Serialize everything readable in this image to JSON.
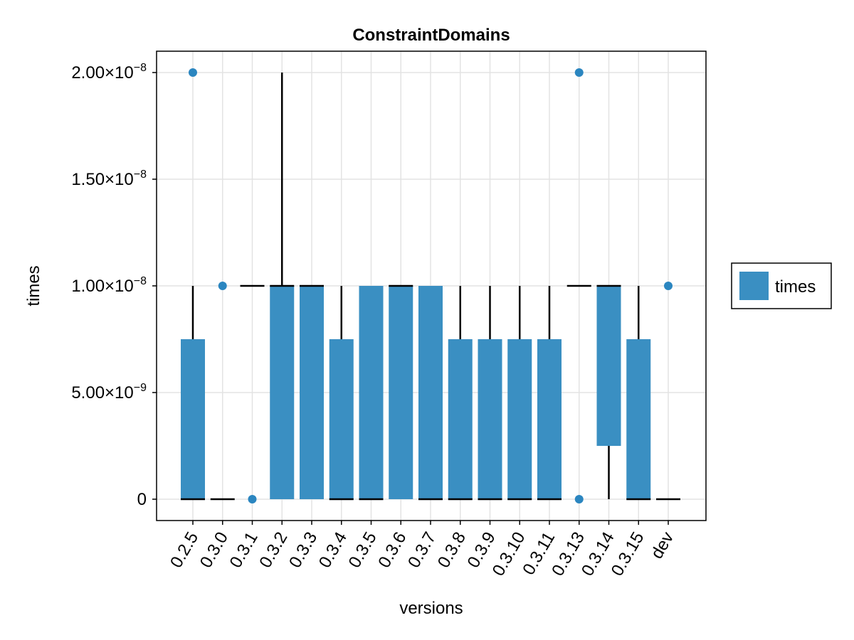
{
  "chart_data": {
    "type": "boxplot",
    "title": "ConstraintDomains",
    "xlabel": "versions",
    "ylabel": "times",
    "ylim": [
      -1e-09,
      2.1e-08
    ],
    "yticks": [
      {
        "value": 0,
        "base": "0",
        "exp": ""
      },
      {
        "value": 5e-09,
        "base": "5.00×10",
        "exp": "−9"
      },
      {
        "value": 1e-08,
        "base": "1.00×10",
        "exp": "−8"
      },
      {
        "value": 1.5e-08,
        "base": "1.50×10",
        "exp": "−8"
      },
      {
        "value": 2e-08,
        "base": "2.00×10",
        "exp": "−8"
      }
    ],
    "grid": true,
    "legend": {
      "position": "right",
      "entries": [
        "times"
      ]
    },
    "series_color": "#3a8fc2",
    "outlier_color": "#2b86c0",
    "categories": [
      "0.2.5",
      "0.3.0",
      "0.3.1",
      "0.3.2",
      "0.3.3",
      "0.3.4",
      "0.3.5",
      "0.3.6",
      "0.3.7",
      "0.3.8",
      "0.3.9",
      "0.3.10",
      "0.3.11",
      "0.3.13",
      "0.3.14",
      "0.3.15",
      "dev"
    ],
    "boxes": [
      {
        "version": "0.2.5",
        "whisker_low": 0,
        "q1": 0,
        "median": 0,
        "q3": 7.5e-09,
        "whisker_high": 1e-08,
        "outliers": [
          2e-08
        ]
      },
      {
        "version": "0.3.0",
        "whisker_low": 0,
        "q1": 0,
        "median": 0,
        "q3": 0,
        "whisker_high": 0,
        "outliers": [
          1e-08
        ]
      },
      {
        "version": "0.3.1",
        "whisker_low": 1e-08,
        "q1": 1e-08,
        "median": 1e-08,
        "q3": 1e-08,
        "whisker_high": 1e-08,
        "outliers": [
          0
        ]
      },
      {
        "version": "0.3.2",
        "whisker_low": 0,
        "q1": 0,
        "median": 1e-08,
        "q3": 1e-08,
        "whisker_high": 2e-08,
        "outliers": []
      },
      {
        "version": "0.3.3",
        "whisker_low": 0,
        "q1": 0,
        "median": 1e-08,
        "q3": 1e-08,
        "whisker_high": 1e-08,
        "outliers": []
      },
      {
        "version": "0.3.4",
        "whisker_low": 0,
        "q1": 0,
        "median": 0,
        "q3": 7.5e-09,
        "whisker_high": 1e-08,
        "outliers": []
      },
      {
        "version": "0.3.5",
        "whisker_low": 0,
        "q1": 0,
        "median": 0,
        "q3": 1e-08,
        "whisker_high": 1e-08,
        "outliers": []
      },
      {
        "version": "0.3.6",
        "whisker_low": 0,
        "q1": 0,
        "median": 1e-08,
        "q3": 1e-08,
        "whisker_high": 1e-08,
        "outliers": []
      },
      {
        "version": "0.3.7",
        "whisker_low": 0,
        "q1": 0,
        "median": 0,
        "q3": 1e-08,
        "whisker_high": 1e-08,
        "outliers": []
      },
      {
        "version": "0.3.8",
        "whisker_low": 0,
        "q1": 0,
        "median": 0,
        "q3": 7.5e-09,
        "whisker_high": 1e-08,
        "outliers": []
      },
      {
        "version": "0.3.9",
        "whisker_low": 0,
        "q1": 0,
        "median": 0,
        "q3": 7.5e-09,
        "whisker_high": 1e-08,
        "outliers": []
      },
      {
        "version": "0.3.10",
        "whisker_low": 0,
        "q1": 0,
        "median": 0,
        "q3": 7.5e-09,
        "whisker_high": 1e-08,
        "outliers": []
      },
      {
        "version": "0.3.11",
        "whisker_low": 0,
        "q1": 0,
        "median": 0,
        "q3": 7.5e-09,
        "whisker_high": 1e-08,
        "outliers": []
      },
      {
        "version": "0.3.13",
        "whisker_low": 1e-08,
        "q1": 1e-08,
        "median": 1e-08,
        "q3": 1e-08,
        "whisker_high": 1e-08,
        "outliers": [
          2e-08,
          0
        ]
      },
      {
        "version": "0.3.14",
        "whisker_low": 0,
        "q1": 2.5e-09,
        "median": 1e-08,
        "q3": 1e-08,
        "whisker_high": 1e-08,
        "outliers": []
      },
      {
        "version": "0.3.15",
        "whisker_low": 0,
        "q1": 0,
        "median": 0,
        "q3": 7.5e-09,
        "whisker_high": 1e-08,
        "outliers": []
      },
      {
        "version": "dev",
        "whisker_low": 0,
        "q1": 0,
        "median": 0,
        "q3": 0,
        "whisker_high": 0,
        "outliers": [
          1e-08
        ]
      }
    ]
  }
}
